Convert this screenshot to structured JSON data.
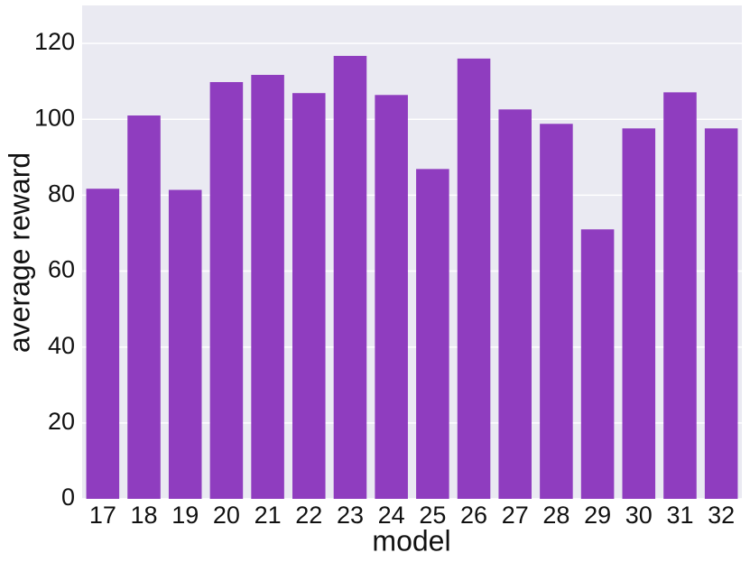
{
  "chart_data": {
    "type": "bar",
    "xlabel": "model",
    "ylabel": "average reward",
    "categories": [
      "17",
      "18",
      "19",
      "20",
      "21",
      "22",
      "23",
      "24",
      "25",
      "26",
      "27",
      "28",
      "29",
      "30",
      "31",
      "32"
    ],
    "values": [
      81.7,
      101,
      81.4,
      109.8,
      111.7,
      106.9,
      116.7,
      106.4,
      86.9,
      116,
      102.6,
      98.8,
      71,
      97.6,
      107.1,
      97.6
    ],
    "color": "#8f3dbf",
    "ylim": [
      0,
      130
    ],
    "yticks": [
      0,
      20,
      40,
      60,
      80,
      100,
      120
    ],
    "grid": true
  }
}
